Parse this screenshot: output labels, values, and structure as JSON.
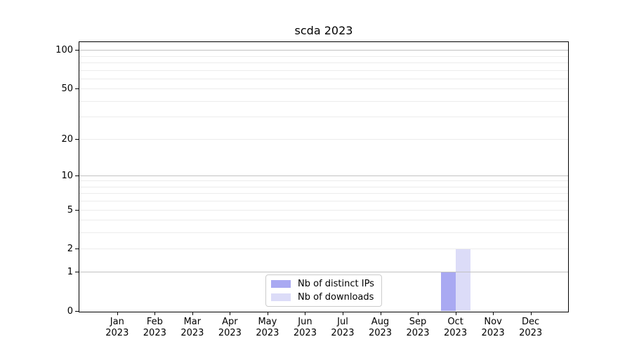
{
  "title": "scda 2023",
  "colors": {
    "distinct_ips_bar": "#a9a9f2",
    "downloads_bar": "#dcdcf8",
    "grid_major": "#c2c2c2",
    "grid_minor": "#ececec",
    "spine": "#000000",
    "legend_border": "#cccccc"
  },
  "legend": {
    "items": [
      {
        "label": "Nb of distinct IPs",
        "color_key": "distinct_ips_bar"
      },
      {
        "label": "Nb of downloads",
        "color_key": "downloads_bar"
      }
    ]
  },
  "chart_data": {
    "type": "bar",
    "title": "scda 2023",
    "categories": [
      "Jan",
      "Feb",
      "Mar",
      "Apr",
      "May",
      "Jun",
      "Jul",
      "Aug",
      "Sep",
      "Oct",
      "Nov",
      "Dec"
    ],
    "x_year_label": "2023",
    "series": [
      {
        "name": "Nb of distinct IPs",
        "color_key": "distinct_ips_bar",
        "values": [
          0,
          0,
          0,
          0,
          0,
          0,
          0,
          0,
          0,
          1,
          0,
          0
        ]
      },
      {
        "name": "Nb of downloads",
        "color_key": "downloads_bar",
        "values": [
          0,
          0,
          0,
          0,
          0,
          0,
          0,
          0,
          0,
          2,
          0,
          0
        ]
      }
    ],
    "xlabel": "",
    "ylabel": "",
    "yscale": "log1p",
    "ylim": [
      0,
      115
    ],
    "yticks": [
      0,
      1,
      2,
      5,
      10,
      20,
      50,
      100
    ],
    "ytick_labels": [
      "0",
      "1",
      "2",
      "5",
      "10",
      "20",
      "50",
      "100"
    ],
    "major_gridlines": [
      1,
      10,
      100
    ],
    "minor_gridlines": [
      2,
      3,
      4,
      5,
      6,
      7,
      8,
      9,
      20,
      30,
      40,
      50,
      60,
      70,
      80,
      90
    ],
    "grid": true,
    "legend_position": "lower center"
  }
}
